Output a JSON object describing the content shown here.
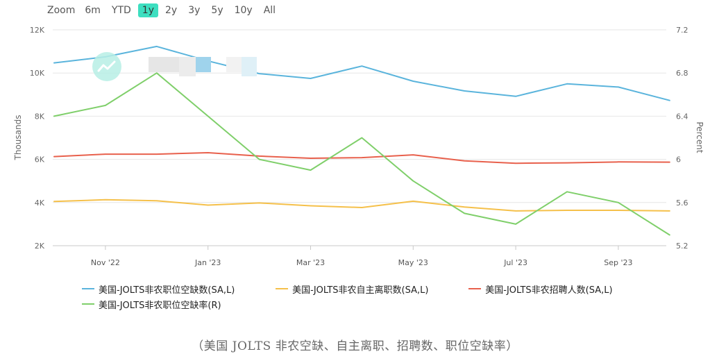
{
  "zoom": {
    "label": "Zoom",
    "options": [
      "6m",
      "YTD",
      "1y",
      "2y",
      "3y",
      "5y",
      "10y",
      "All"
    ],
    "active": "1y",
    "active_color": "#3ddfc0"
  },
  "caption": "（美国 JOLTS 非农空缺、自主离职、招聘数、职位空缺率）",
  "chart_data": {
    "type": "line",
    "x": [
      "2022-10",
      "2022-11",
      "2022-12",
      "2023-01",
      "2023-02",
      "2023-03",
      "2023-04",
      "2023-05",
      "2023-06",
      "2023-07",
      "2023-08",
      "2023-09",
      "2023-10"
    ],
    "x_tick_labels": [
      {
        "month": "2022-11",
        "label": "Nov '22"
      },
      {
        "month": "2023-01",
        "label": "Jan '23"
      },
      {
        "month": "2023-03",
        "label": "Mar '23"
      },
      {
        "month": "2023-05",
        "label": "May '23"
      },
      {
        "month": "2023-07",
        "label": "Jul '23"
      },
      {
        "month": "2023-09",
        "label": "Sep '23"
      }
    ],
    "y_left": {
      "label": "Thousands",
      "range": [
        2000,
        12000
      ],
      "ticks": [
        2000,
        4000,
        6000,
        8000,
        10000,
        12000
      ],
      "tick_labels": [
        "2K",
        "4K",
        "6K",
        "8K",
        "10K",
        "12K"
      ]
    },
    "y_right": {
      "label": "Percent",
      "range": [
        5.2,
        7.2
      ],
      "ticks": [
        5.2,
        5.6,
        6,
        6.4,
        6.8,
        7.2
      ],
      "tick_labels": [
        "5.2",
        "5.6",
        "6",
        "6.4",
        "6.8",
        "7.2"
      ]
    },
    "grid": "horizontal",
    "legend_position": "bottom",
    "series": [
      {
        "name": "美国-JOLTS非农职位空缺数(SA,L)",
        "axis": "left",
        "color": "#5ab4dc",
        "values": [
          10470,
          10750,
          11230,
          10560,
          9970,
          9750,
          10320,
          9620,
          9170,
          8920,
          9500,
          9350,
          8730
        ]
      },
      {
        "name": "美国-JOLTS非农自主离职数(SA,L)",
        "axis": "left",
        "color": "#f5c04a",
        "values": [
          4050,
          4130,
          4080,
          3880,
          3980,
          3850,
          3770,
          4060,
          3790,
          3610,
          3640,
          3640,
          3610
        ]
      },
      {
        "name": "美国-JOLTS非农招聘人数(SA,L)",
        "axis": "left",
        "color": "#e8604c",
        "values": [
          6130,
          6240,
          6240,
          6310,
          6150,
          6050,
          6080,
          6210,
          5930,
          5820,
          5840,
          5880,
          5870
        ]
      },
      {
        "name": "美国-JOLTS非农职位空缺率(R)",
        "axis": "right",
        "color": "#7fcf6a",
        "values": [
          6.4,
          6.5,
          6.8,
          6.4,
          6.0,
          5.9,
          6.2,
          5.8,
          5.5,
          5.4,
          5.7,
          5.6,
          5.3
        ]
      }
    ]
  }
}
